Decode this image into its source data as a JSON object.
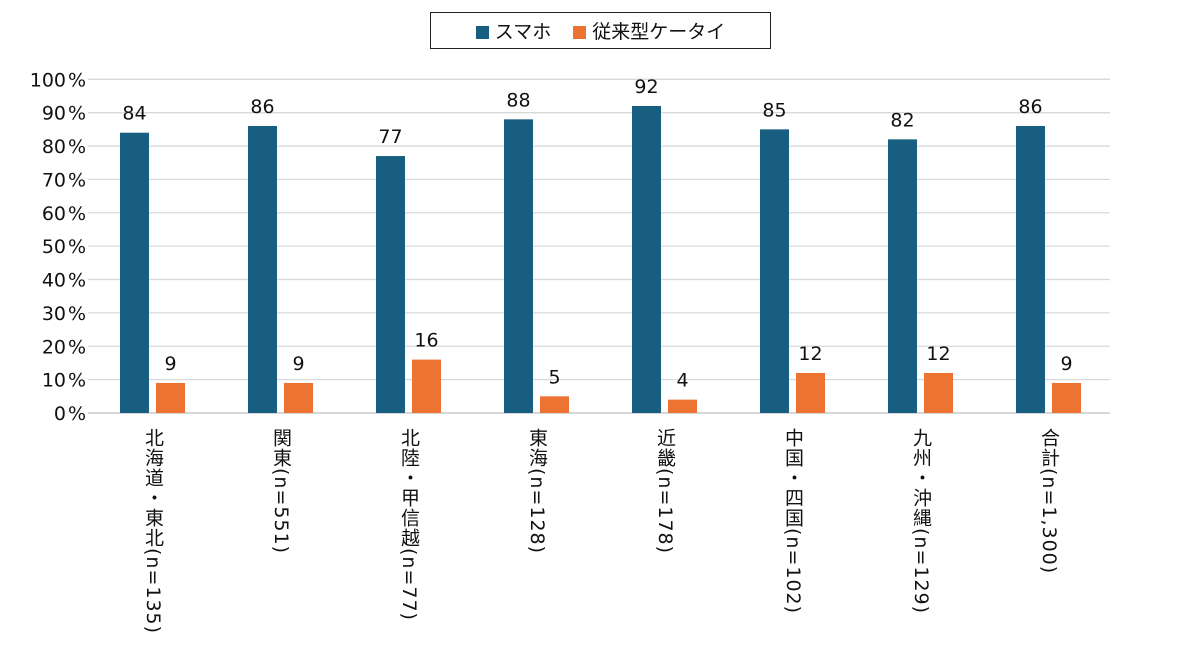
{
  "chart_data": {
    "type": "bar",
    "title": "",
    "xlabel": "",
    "ylabel": "",
    "ylim": [
      0,
      100
    ],
    "yticks": [
      "0%",
      "10%",
      "20%",
      "30%",
      "40%",
      "50%",
      "60%",
      "70%",
      "80%",
      "90%",
      "100%"
    ],
    "grid": true,
    "legend_position": "top-center",
    "categories": [
      "北海道・東北(n=135)",
      "関東(n=551)",
      "北陸・甲信越(n=77)",
      "東海(n=128)",
      "近畿(n=178)",
      "中国・四国(n=102)",
      "九州・沖縄(n=129)",
      "合計(n=1,300)"
    ],
    "series": [
      {
        "name": "スマホ",
        "color": "#175e80",
        "values": [
          84,
          86,
          77,
          88,
          92,
          85,
          82,
          86
        ]
      },
      {
        "name": "従来型ケータイ",
        "color": "#ed7332",
        "values": [
          9,
          9,
          16,
          5,
          4,
          12,
          12,
          9
        ]
      }
    ]
  }
}
